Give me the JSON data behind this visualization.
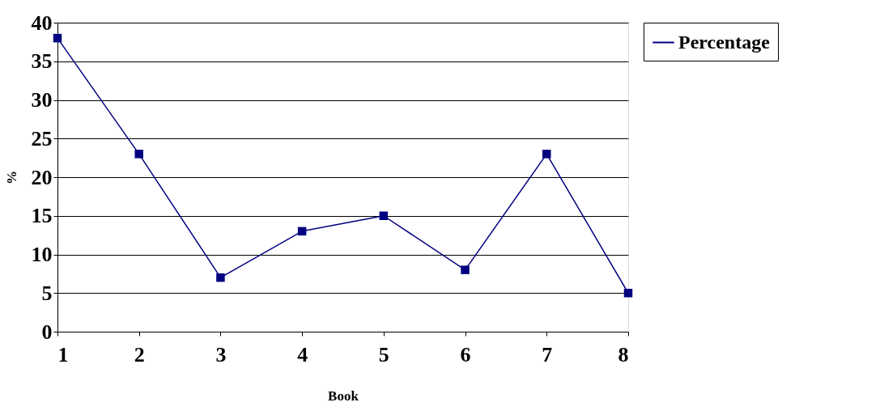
{
  "chart_data": {
    "type": "line",
    "xlabel": "Book",
    "ylabel": "%",
    "x": [
      1,
      2,
      3,
      4,
      5,
      6,
      7,
      8
    ],
    "series": [
      {
        "name": "Percentage",
        "color": "#000080",
        "values": [
          38,
          23,
          7,
          13,
          15,
          8,
          23,
          5
        ]
      }
    ],
    "xlim": [
      1,
      8
    ],
    "xticks": [
      1,
      2,
      3,
      4,
      5,
      6,
      7,
      8
    ],
    "ylim": [
      0,
      40
    ],
    "yticks": [
      0,
      5,
      10,
      15,
      20,
      25,
      30,
      35,
      40
    ],
    "grid": "y",
    "legend": "right",
    "marker": "square",
    "line_style": "solid"
  }
}
